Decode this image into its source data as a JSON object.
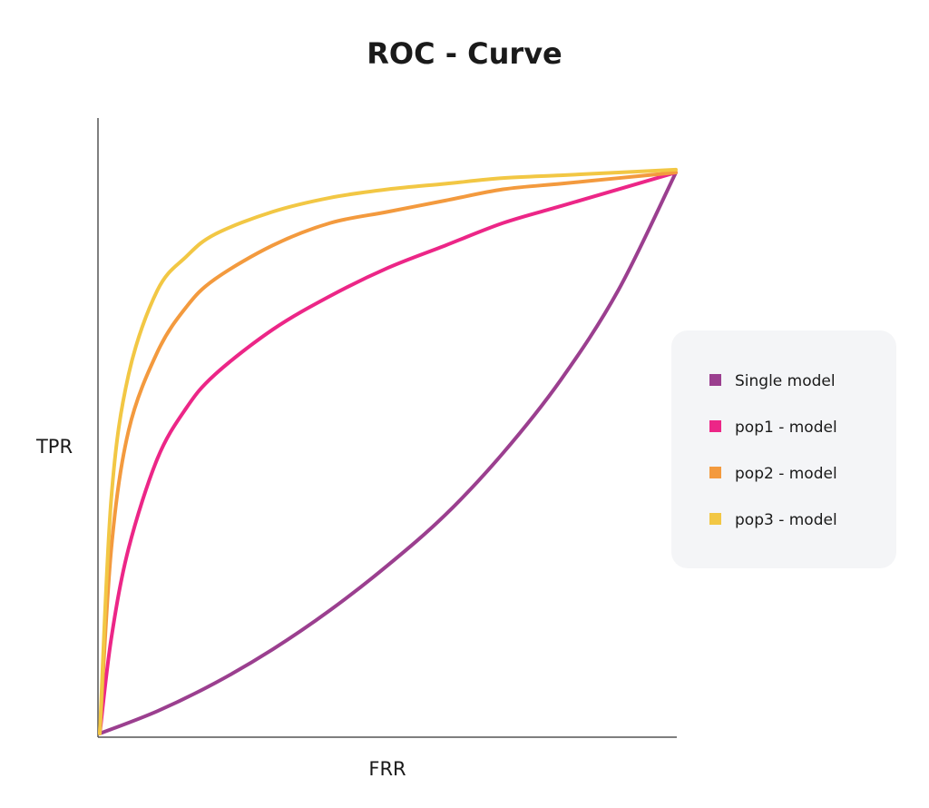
{
  "chart_data": {
    "type": "line",
    "title": "ROC - Curve",
    "xlabel": "FRR",
    "ylabel": "TPR",
    "xlim": [
      0,
      1
    ],
    "ylim": [
      0,
      1
    ],
    "grid": false,
    "legend_position": "right",
    "series": [
      {
        "name": "Single model",
        "color": "#9b3f8f",
        "x": [
          0,
          0.1,
          0.2,
          0.3,
          0.4,
          0.5,
          0.6,
          0.7,
          0.8,
          0.9,
          1.0
        ],
        "y": [
          0,
          0.04,
          0.09,
          0.15,
          0.22,
          0.3,
          0.39,
          0.5,
          0.63,
          0.79,
          1.0
        ]
      },
      {
        "name": "pop1 - model",
        "color": "#ec2687",
        "x": [
          0,
          0.02,
          0.05,
          0.1,
          0.15,
          0.2,
          0.3,
          0.4,
          0.5,
          0.6,
          0.7,
          0.8,
          0.9,
          1.0
        ],
        "y": [
          0,
          0.17,
          0.33,
          0.49,
          0.58,
          0.64,
          0.72,
          0.78,
          0.83,
          0.87,
          0.91,
          0.94,
          0.97,
          1.0
        ]
      },
      {
        "name": "pop2 - model",
        "color": "#f39a3e",
        "x": [
          0,
          0.02,
          0.05,
          0.1,
          0.15,
          0.2,
          0.3,
          0.4,
          0.5,
          0.6,
          0.7,
          0.8,
          0.9,
          1.0
        ],
        "y": [
          0,
          0.33,
          0.54,
          0.68,
          0.76,
          0.81,
          0.87,
          0.91,
          0.93,
          0.95,
          0.97,
          0.98,
          0.99,
          1.0
        ]
      },
      {
        "name": "pop3 - model",
        "color": "#f2c744",
        "x": [
          0,
          0.02,
          0.05,
          0.1,
          0.15,
          0.2,
          0.3,
          0.4,
          0.5,
          0.6,
          0.7,
          0.8,
          0.9,
          1.0
        ],
        "y": [
          0,
          0.42,
          0.64,
          0.79,
          0.85,
          0.89,
          0.93,
          0.955,
          0.97,
          0.98,
          0.99,
          0.995,
          1.0,
          1.005
        ]
      }
    ]
  },
  "colors": {
    "axis": "#555555",
    "legend_background": "#f4f5f7"
  }
}
